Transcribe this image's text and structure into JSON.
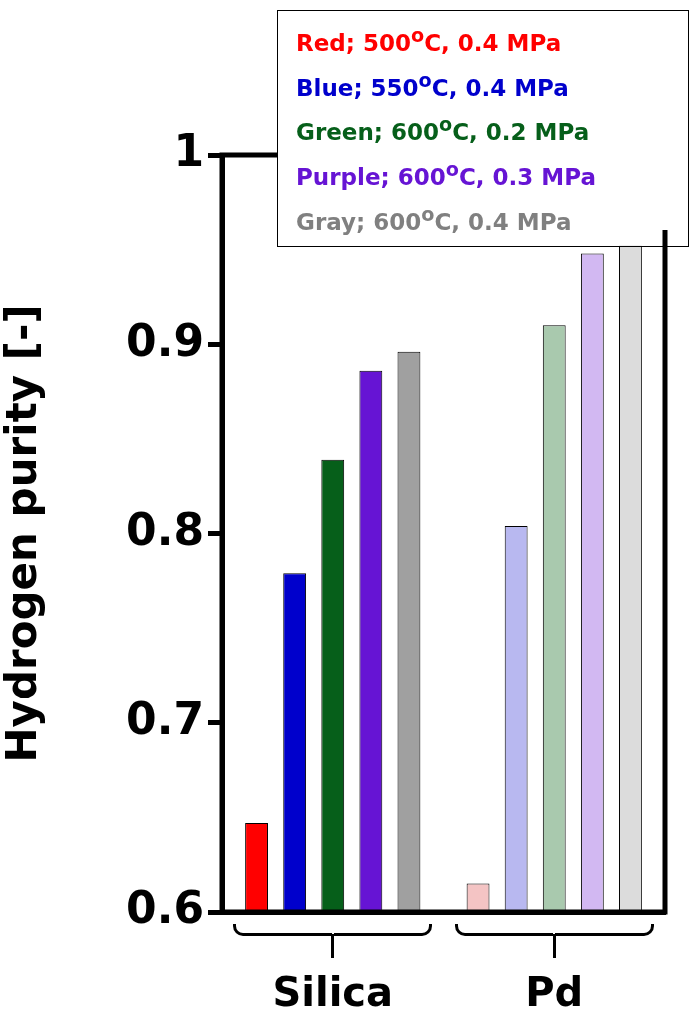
{
  "chart_data": {
    "type": "bar",
    "ylabel": "Hydrogen purity [-]",
    "categories": [
      "Silica",
      "Pd"
    ],
    "series": [
      {
        "name": "Red; 500$^{o}$C, 0.4 MPa",
        "color": "#ff0000",
        "colors": [
          "#ff0000",
          "#f4c4c4"
        ],
        "values": [
          0.647,
          0.615
        ]
      },
      {
        "name": "Blue; 550$^{o}$C, 0.4 MPa",
        "color": "#0000cc",
        "colors": [
          "#0000cc",
          "#b8b8f0"
        ],
        "values": [
          0.779,
          0.804
        ]
      },
      {
        "name": "Green; 600$^{o}$C, 0.2 MPa",
        "color": "#065f1a",
        "colors": [
          "#065f1a",
          "#a9c9ae"
        ],
        "values": [
          0.839,
          0.91
        ]
      },
      {
        "name": "Purple; 600$^{o}$C, 0.3 MPa",
        "color": "#6614d4",
        "colors": [
          "#6614d4",
          "#d2b8f2"
        ],
        "values": [
          0.886,
          0.948
        ]
      },
      {
        "name": "Gray; 600$^{o}$C, 0.4 MPa",
        "color": "#808080",
        "colors": [
          "#a0a0a0",
          "#dcdcdc"
        ],
        "values": [
          0.896,
          0.952
        ]
      }
    ],
    "ylim": [
      0.6,
      1
    ],
    "yticks": [
      {
        "value": 0.6,
        "label": "0.6"
      },
      {
        "value": 0.7,
        "label": "0.7"
      },
      {
        "value": 0.8,
        "label": "0.8"
      },
      {
        "value": 0.9,
        "label": "0.9"
      },
      {
        "value": 1,
        "label": "1"
      }
    ],
    "grid": false,
    "legend": "top right"
  }
}
